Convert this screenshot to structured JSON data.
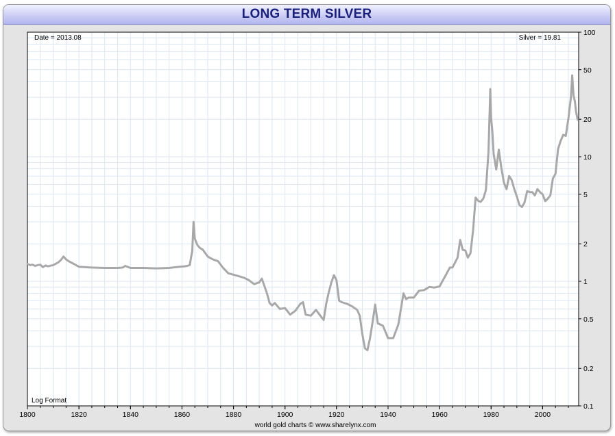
{
  "chart_data": {
    "type": "line",
    "title": "LONG TERM SILVER",
    "date_label": "Date = 2013.08",
    "value_label": "Silver = 19.81",
    "scale_note": "Log Format",
    "credit": "world gold charts © www.sharelynx.com",
    "y_scale": "log",
    "xlim": [
      1800,
      2014
    ],
    "ylim": [
      0.1,
      100
    ],
    "x_ticks": [
      1800,
      1820,
      1840,
      1860,
      1880,
      1900,
      1920,
      1940,
      1960,
      1980,
      2000
    ],
    "y_ticks": [
      100,
      50,
      20,
      10,
      5,
      2,
      1,
      0.5,
      0.2,
      0.1
    ],
    "grid": true,
    "line_color": "#a8a8a8",
    "series": [
      {
        "x": [
          1800,
          1801,
          1802,
          1803,
          1804,
          1805,
          1806,
          1807,
          1808,
          1810,
          1812,
          1813,
          1814,
          1815,
          1816,
          1818,
          1820,
          1825,
          1830,
          1835,
          1837,
          1838,
          1840,
          1845,
          1850,
          1855,
          1859,
          1861,
          1862,
          1863,
          1864,
          1864.5,
          1865,
          1866,
          1867,
          1868,
          1870,
          1872,
          1874,
          1876,
          1878,
          1880,
          1884,
          1886,
          1888,
          1890,
          1891,
          1892,
          1893,
          1894,
          1895,
          1896,
          1898,
          1900,
          1902,
          1904,
          1906,
          1907,
          1908,
          1910,
          1912,
          1914,
          1915,
          1916,
          1917,
          1918,
          1919,
          1920,
          1921,
          1922,
          1924,
          1926,
          1928,
          1929,
          1930,
          1931,
          1932,
          1933,
          1934,
          1935,
          1936,
          1937,
          1938,
          1940,
          1941,
          1942,
          1944,
          1946,
          1947,
          1948,
          1950,
          1952,
          1954,
          1956,
          1958,
          1960,
          1962,
          1964,
          1965,
          1967,
          1968,
          1969,
          1970,
          1971,
          1972,
          1973,
          1974,
          1975,
          1976,
          1977,
          1978,
          1979,
          1979.7,
          1980,
          1980.5,
          1981,
          1982,
          1983,
          1984,
          1985,
          1986,
          1987,
          1988,
          1989,
          1990,
          1991,
          1992,
          1993,
          1994,
          1995,
          1996,
          1997,
          1998,
          1999,
          2000,
          2001,
          2002,
          2003,
          2004,
          2005,
          2006,
          2007,
          2008,
          2009,
          2010,
          2011,
          2011.5,
          2012,
          2012.5,
          2013,
          2013.6
        ],
        "values": [
          1.38,
          1.35,
          1.36,
          1.33,
          1.35,
          1.36,
          1.3,
          1.34,
          1.32,
          1.35,
          1.42,
          1.48,
          1.58,
          1.5,
          1.45,
          1.38,
          1.31,
          1.29,
          1.28,
          1.28,
          1.29,
          1.33,
          1.28,
          1.28,
          1.27,
          1.28,
          1.31,
          1.32,
          1.33,
          1.35,
          1.75,
          3.0,
          2.2,
          1.95,
          1.85,
          1.8,
          1.58,
          1.5,
          1.45,
          1.28,
          1.16,
          1.13,
          1.07,
          1.02,
          0.95,
          0.98,
          1.05,
          0.92,
          0.8,
          0.67,
          0.64,
          0.67,
          0.6,
          0.61,
          0.54,
          0.58,
          0.66,
          0.68,
          0.54,
          0.53,
          0.59,
          0.52,
          0.49,
          0.66,
          0.82,
          0.98,
          1.12,
          1.02,
          0.7,
          0.68,
          0.66,
          0.63,
          0.59,
          0.53,
          0.38,
          0.29,
          0.28,
          0.35,
          0.47,
          0.65,
          0.46,
          0.45,
          0.44,
          0.35,
          0.35,
          0.35,
          0.45,
          0.8,
          0.72,
          0.74,
          0.74,
          0.84,
          0.85,
          0.9,
          0.89,
          0.91,
          1.08,
          1.29,
          1.29,
          1.55,
          2.15,
          1.79,
          1.77,
          1.55,
          1.68,
          2.56,
          4.7,
          4.42,
          4.35,
          4.62,
          5.4,
          11.0,
          35.0,
          20.6,
          16.0,
          10.5,
          7.9,
          11.4,
          8.1,
          6.2,
          5.5,
          7.0,
          6.5,
          5.5,
          4.8,
          4.1,
          3.95,
          4.3,
          5.3,
          5.2,
          5.2,
          4.9,
          5.5,
          5.2,
          5.0,
          4.4,
          4.6,
          4.9,
          6.7,
          7.3,
          11.5,
          13.4,
          15.0,
          14.7,
          20.2,
          30.0,
          45.0,
          31.0,
          28.0,
          23.0,
          19.81
        ]
      }
    ]
  }
}
